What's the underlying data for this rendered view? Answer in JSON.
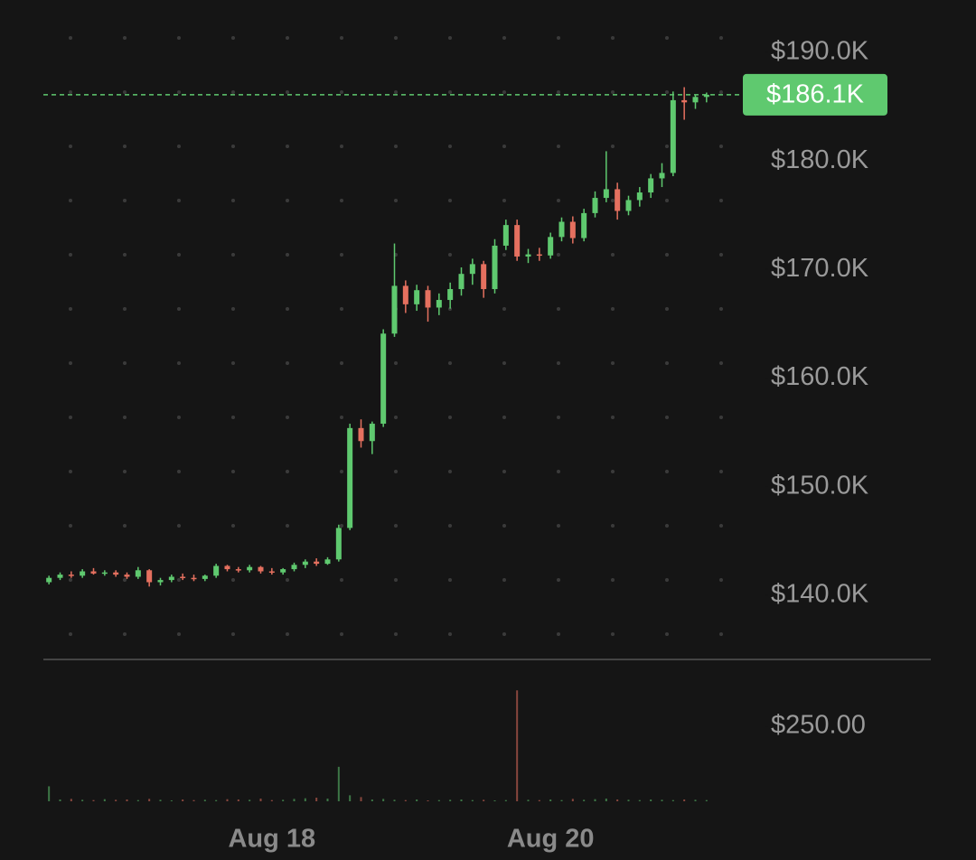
{
  "chart_data": {
    "type": "candlestick",
    "categories": [
      null,
      null,
      null,
      null,
      null,
      null,
      null,
      null,
      null,
      null,
      null,
      null,
      null,
      null,
      null,
      null,
      null,
      null,
      null,
      null,
      "Aug 18",
      null,
      null,
      null,
      null,
      null,
      null,
      null,
      null,
      null,
      null,
      null,
      null,
      null,
      null,
      null,
      null,
      null,
      null,
      null,
      null,
      null,
      null,
      null,
      null,
      "Aug 20",
      null,
      null,
      null,
      null,
      null,
      null,
      null,
      null,
      null,
      null,
      null,
      null,
      null,
      null
    ],
    "open": [
      141200,
      141600,
      141900,
      141800,
      142200,
      142000,
      142100,
      141900,
      141700,
      142300,
      141200,
      141400,
      141700,
      141600,
      141500,
      141800,
      142700,
      142400,
      142300,
      142600,
      142200,
      142100,
      142400,
      142800,
      143100,
      142900,
      143300,
      146200,
      155400,
      154200,
      155800,
      164100,
      168500,
      166800,
      168100,
      166500,
      167200,
      168200,
      169600,
      170500,
      168200,
      172200,
      174100,
      171200,
      171400,
      171300,
      173000,
      174400,
      172900,
      175200,
      176600,
      177400,
      175400,
      176400,
      177100,
      178400,
      178900,
      185600,
      185400,
      185900
    ],
    "high": [
      141800,
      142100,
      142200,
      142400,
      142500,
      142300,
      142300,
      142100,
      142600,
      142400,
      141600,
      141900,
      142000,
      141900,
      141900,
      142900,
      142800,
      142600,
      142800,
      142700,
      142500,
      142500,
      143000,
      143300,
      143400,
      143500,
      146500,
      155800,
      156200,
      156000,
      164500,
      172400,
      169000,
      168600,
      168500,
      167800,
      168800,
      170200,
      171000,
      170800,
      172800,
      174600,
      174600,
      171900,
      172000,
      173400,
      174800,
      174900,
      175600,
      177200,
      180900,
      178000,
      176800,
      177600,
      178800,
      179800,
      186400,
      186800,
      186100,
      186300
    ],
    "low": [
      141000,
      141400,
      141600,
      141600,
      141900,
      141800,
      141700,
      141500,
      141500,
      140800,
      140900,
      141200,
      141400,
      141300,
      141300,
      141600,
      142200,
      142100,
      142100,
      142000,
      141900,
      141900,
      142200,
      142500,
      142700,
      142800,
      143100,
      146000,
      153600,
      153000,
      155500,
      163800,
      166000,
      166200,
      165200,
      165800,
      166400,
      167600,
      168600,
      167400,
      167800,
      171800,
      170800,
      170600,
      170800,
      171000,
      172600,
      172400,
      172600,
      174800,
      176200,
      174600,
      175000,
      175800,
      176600,
      177600,
      178600,
      183800,
      184800,
      185400
    ],
    "close": [
      141600,
      141900,
      141800,
      142200,
      142000,
      142100,
      141900,
      141700,
      142300,
      141200,
      141400,
      141700,
      141600,
      141500,
      141800,
      142700,
      142400,
      142300,
      142600,
      142200,
      142100,
      142400,
      142800,
      143100,
      142900,
      143300,
      146200,
      155400,
      154200,
      155800,
      164100,
      168500,
      166800,
      168100,
      166500,
      167200,
      168200,
      169600,
      170500,
      168200,
      172200,
      174100,
      171200,
      171400,
      171300,
      173000,
      174400,
      172900,
      175200,
      176600,
      177400,
      175400,
      176400,
      177100,
      178400,
      178900,
      185600,
      185400,
      185900,
      186100
    ],
    "volume": [
      50,
      6,
      8,
      5,
      4,
      7,
      5,
      6,
      4,
      8,
      5,
      3,
      6,
      4,
      5,
      4,
      7,
      6,
      5,
      9,
      4,
      5,
      8,
      10,
      12,
      9,
      115,
      20,
      14,
      6,
      8,
      5,
      4,
      6,
      3,
      4,
      5,
      6,
      4,
      5,
      3,
      4,
      370,
      5,
      4,
      6,
      4,
      8,
      5,
      7,
      9,
      6,
      5,
      4,
      6,
      5,
      4,
      6,
      5,
      4
    ],
    "up_color": "#5fc96f",
    "down_color": "#e5705f",
    "ylim": [
      135000,
      192300
    ],
    "yticks": [
      {
        "value": 140000,
        "label": "$140.0K"
      },
      {
        "value": 150000,
        "label": "$150.0K"
      },
      {
        "value": 160000,
        "label": "$160.0K"
      },
      {
        "value": 170000,
        "label": "$170.0K"
      },
      {
        "value": 180000,
        "label": "$180.0K"
      },
      {
        "value": 190000,
        "label": "$190.0K"
      }
    ],
    "y2lim": [
      0,
      440
    ],
    "y2ticks": [
      {
        "value": 250,
        "label": "$250.00"
      }
    ],
    "last_price": {
      "value": 186100,
      "label": "$186.1K"
    },
    "grid": true
  }
}
